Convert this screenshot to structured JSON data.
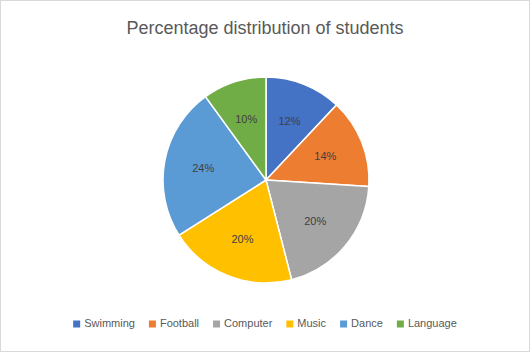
{
  "chart_data": {
    "type": "pie",
    "title": "Percentage distribution of students",
    "categories": [
      "Swimming",
      "Football",
      "Computer",
      "Music",
      "Dance",
      "Language"
    ],
    "values": [
      12,
      14,
      20,
      20,
      24,
      10
    ],
    "value_labels": [
      "12%",
      "14%",
      "20%",
      "20%",
      "24%",
      "10%"
    ],
    "colors": [
      "#4472c4",
      "#ed7d31",
      "#a5a5a5",
      "#ffc000",
      "#5b9bd5",
      "#70ad47"
    ],
    "data_labels": true,
    "legend": "bottom"
  }
}
